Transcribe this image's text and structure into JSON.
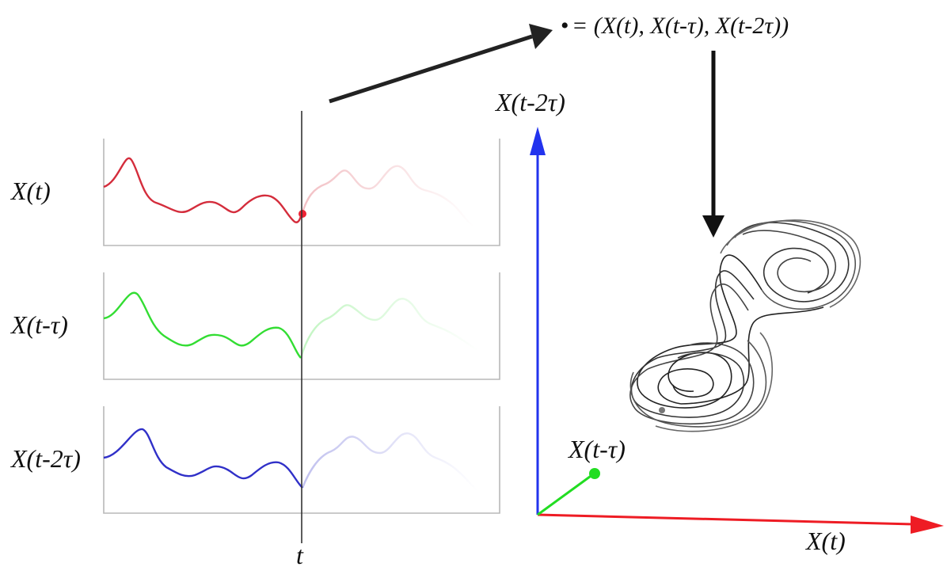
{
  "colors": {
    "red": "#d42d3c",
    "green": "#33dd33",
    "blue": "#3030c8",
    "axis_red": "#ee1c24",
    "axis_blue": "#2233ee",
    "axis_green": "#22dd22",
    "panel_border": "#b8b8b8",
    "attractor": "#222222"
  },
  "panels": [
    {
      "label": "X(t)",
      "color_key": "red"
    },
    {
      "label": "X(t-τ)",
      "color_key": "green"
    },
    {
      "label": "X(t-2τ)",
      "color_key": "blue"
    }
  ],
  "time_marker": {
    "label": "t"
  },
  "formula": {
    "bullet": "•",
    "text": " = (X(t), X(t-τ), X(t-2τ))"
  },
  "axes": {
    "x_label": "X(t)",
    "y_label": "X(t-τ)",
    "z_label": "X(t-2τ)"
  },
  "icons": {
    "arrow_to_formula": "arrow-right-icon",
    "arrow_to_attractor": "arrow-down-icon"
  }
}
